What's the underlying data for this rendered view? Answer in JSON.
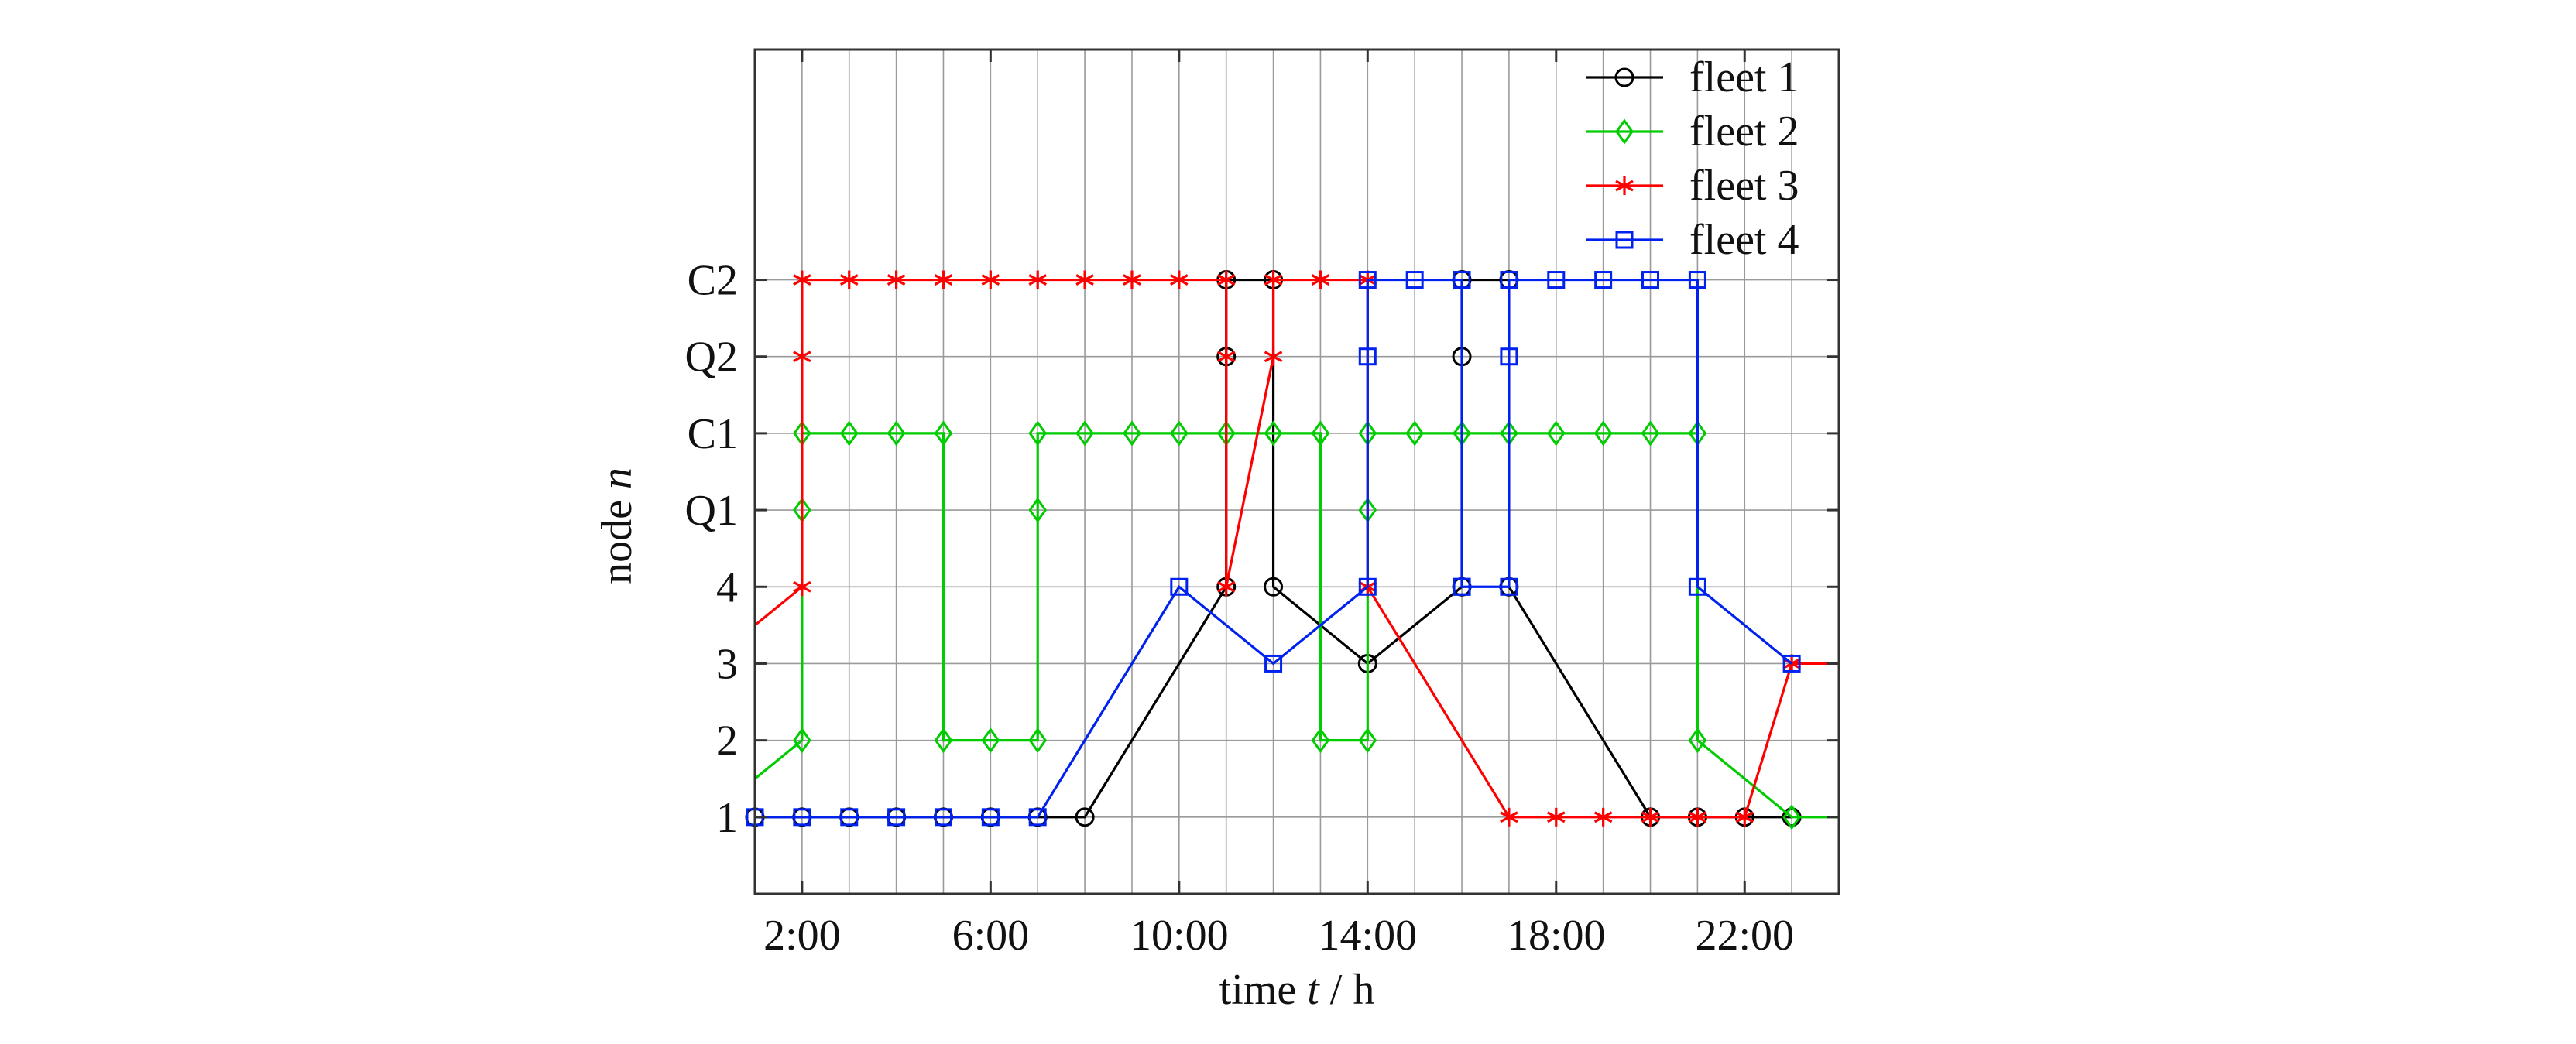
{
  "chart_data": {
    "type": "line",
    "xlabel_parts": [
      "time ",
      "t",
      " / h"
    ],
    "ylabel_parts": [
      "node ",
      "n"
    ],
    "x_ticks": [
      {
        "value": 2,
        "label": "2:00"
      },
      {
        "value": 6,
        "label": "6:00"
      },
      {
        "value": 10,
        "label": "10:00"
      },
      {
        "value": 14,
        "label": "14:00"
      },
      {
        "value": 18,
        "label": "18:00"
      },
      {
        "value": 22,
        "label": "22:00"
      }
    ],
    "xlim": [
      1,
      24
    ],
    "y_categories": [
      "1",
      "2",
      "3",
      "4",
      "Q1",
      "C1",
      "Q2",
      "C2"
    ],
    "ylim": [
      0,
      11
    ],
    "grid": true,
    "legend_position": "top-right",
    "series": [
      {
        "name": "fleet 1",
        "color": "#000000",
        "marker": "circle",
        "x": [
          1,
          2,
          3,
          4,
          5,
          6,
          7,
          8,
          11,
          11,
          11,
          12,
          12,
          14,
          16,
          16,
          16,
          17,
          17,
          20,
          21,
          22,
          23
        ],
        "y": [
          "1",
          "1",
          "1",
          "1",
          "1",
          "1",
          "1",
          "1",
          "4",
          "Q2",
          "C2",
          "C2",
          "4",
          "3",
          "4",
          "Q2",
          "C2",
          "C2",
          "4",
          "1",
          "1",
          "1",
          "1"
        ]
      },
      {
        "name": "fleet 2",
        "color": "#00cc00",
        "marker": "diamond",
        "x": [
          1,
          2,
          2,
          2,
          3,
          4,
          5,
          5,
          6,
          7,
          7,
          7,
          8,
          9,
          10,
          11,
          12,
          13,
          13,
          14,
          14,
          14,
          15,
          16,
          17,
          18,
          19,
          20,
          21,
          21,
          23,
          24
        ],
        "y": [
          1.5,
          "2",
          "Q1",
          "C1",
          "C1",
          "C1",
          "C1",
          "2",
          "2",
          "2",
          "Q1",
          "C1",
          "C1",
          "C1",
          "C1",
          "C1",
          "C1",
          "C1",
          "2",
          "2",
          "Q1",
          "C1",
          "C1",
          "C1",
          "C1",
          "C1",
          "C1",
          "C1",
          "C1",
          "2",
          "1",
          "1"
        ]
      },
      {
        "name": "fleet 3",
        "color": "#ff0000",
        "marker": "asterisk",
        "x": [
          1,
          2,
          2,
          2,
          3,
          4,
          5,
          6,
          7,
          8,
          9,
          10,
          11,
          11,
          11,
          12,
          12,
          13,
          14,
          14,
          17,
          18,
          19,
          20,
          21,
          22,
          23,
          24
        ],
        "y": [
          3.5,
          "4",
          "Q2",
          "C2",
          "C2",
          "C2",
          "C2",
          "C2",
          "C2",
          "C2",
          "C2",
          "C2",
          "C2",
          "Q2",
          "4",
          "Q2",
          "C2",
          "C2",
          "C2",
          "4",
          "1",
          "1",
          "1",
          "1",
          "1",
          "1",
          "3",
          "3"
        ]
      },
      {
        "name": "fleet 4",
        "color": "#0022ee",
        "marker": "square",
        "x": [
          1,
          2,
          3,
          4,
          5,
          6,
          7,
          10,
          12,
          14,
          14,
          14,
          15,
          16,
          16,
          16,
          17,
          17,
          17,
          18,
          19,
          20,
          21,
          21,
          23
        ],
        "y": [
          "1",
          "1",
          "1",
          "1",
          "1",
          "1",
          "1",
          "4",
          "3",
          "4",
          "Q2",
          "C2",
          "C2",
          "C2",
          "4",
          "4",
          "4",
          "Q2",
          "C2",
          "C2",
          "C2",
          "C2",
          "C2",
          "4",
          "3"
        ]
      }
    ]
  }
}
